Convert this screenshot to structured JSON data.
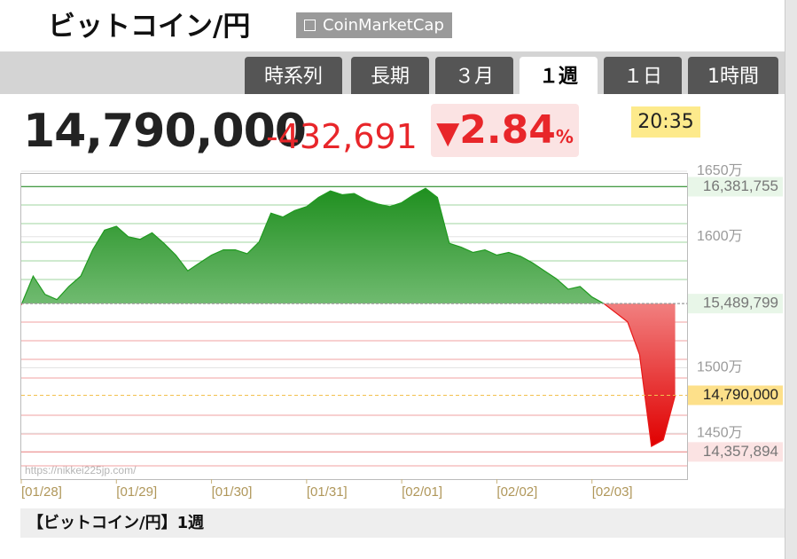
{
  "header": {
    "title": "ビットコイン/円",
    "source": "CoinMarketCap",
    "tabs": [
      "時系列",
      "長期",
      "３月",
      "１週",
      "１日",
      "1時間"
    ],
    "active_tab": 3,
    "price": "14,790,000",
    "change": "-432,691",
    "change_percent": {
      "arrow": "▼",
      "number": "2.84",
      "unit": "%"
    },
    "time": "20:35"
  },
  "chart_data": {
    "type": "area",
    "watermark": "https://nikkei225jp.com/",
    "caption": "【ビットコイン/円】1週",
    "x": [
      0,
      3,
      6,
      9,
      12,
      15,
      18,
      21,
      24,
      27,
      30,
      33,
      36,
      39,
      42,
      45,
      48,
      51,
      54,
      57,
      60,
      63,
      66,
      69,
      72,
      75,
      78,
      81,
      84,
      87,
      90,
      93,
      96,
      99,
      102,
      105,
      108,
      111,
      114,
      117,
      120,
      123,
      126,
      129,
      132,
      135,
      138,
      141,
      144,
      147,
      150,
      153,
      156,
      159,
      162,
      165
    ],
    "values": [
      15480000,
      15700000,
      15560000,
      15520000,
      15620000,
      15700000,
      15900000,
      16050000,
      16080000,
      16000000,
      15980000,
      16030000,
      15950000,
      15860000,
      15740000,
      15800000,
      15860000,
      15900000,
      15900000,
      15870000,
      15960000,
      16180000,
      16150000,
      16200000,
      16230000,
      16300000,
      16350000,
      16320000,
      16330000,
      16280000,
      16250000,
      16230000,
      16260000,
      16320000,
      16370000,
      16300000,
      15950000,
      15920000,
      15880000,
      15900000,
      15860000,
      15880000,
      15850000,
      15800000,
      15740000,
      15680000,
      15600000,
      15620000,
      15540000,
      15490000,
      15420000,
      15350000,
      15100000,
      14400000,
      14450000,
      14790000
    ],
    "xlim": [
      0,
      168
    ],
    "xticks": [
      {
        "value": 0,
        "label": "[01/28]"
      },
      {
        "value": 24,
        "label": "[01/29]"
      },
      {
        "value": 48,
        "label": "[01/30]"
      },
      {
        "value": 72,
        "label": "[01/31]"
      },
      {
        "value": 96,
        "label": "[02/01]"
      },
      {
        "value": 120,
        "label": "[02/02]"
      },
      {
        "value": 144,
        "label": "[02/03]"
      }
    ],
    "ylim": [
      14150000,
      16520000
    ],
    "yticks": [
      {
        "value": 16500000,
        "label": "1650万"
      },
      {
        "value": 16000000,
        "label": "1600万"
      },
      {
        "value": 15000000,
        "label": "1500万"
      },
      {
        "value": 14500000,
        "label": "1450万"
      }
    ],
    "above_color": "#1f9a1f",
    "below_color": "#e81818",
    "reference_lines": [
      {
        "value": 16381755,
        "label": "16,381,755",
        "color": "#2e8b2e",
        "background": "#e8f6e8"
      },
      {
        "value": 15489799,
        "label": "15,489,799",
        "color": "#999999",
        "background": "#e8f6e8",
        "baseline": true
      },
      {
        "value": 14790000,
        "label": "14,790,000",
        "color": "#f2c14e",
        "background": "#fde08a"
      },
      {
        "value": 14357894,
        "label": "14,357,894",
        "color": "#e87b7b",
        "background": "#fbe3e3"
      }
    ]
  }
}
